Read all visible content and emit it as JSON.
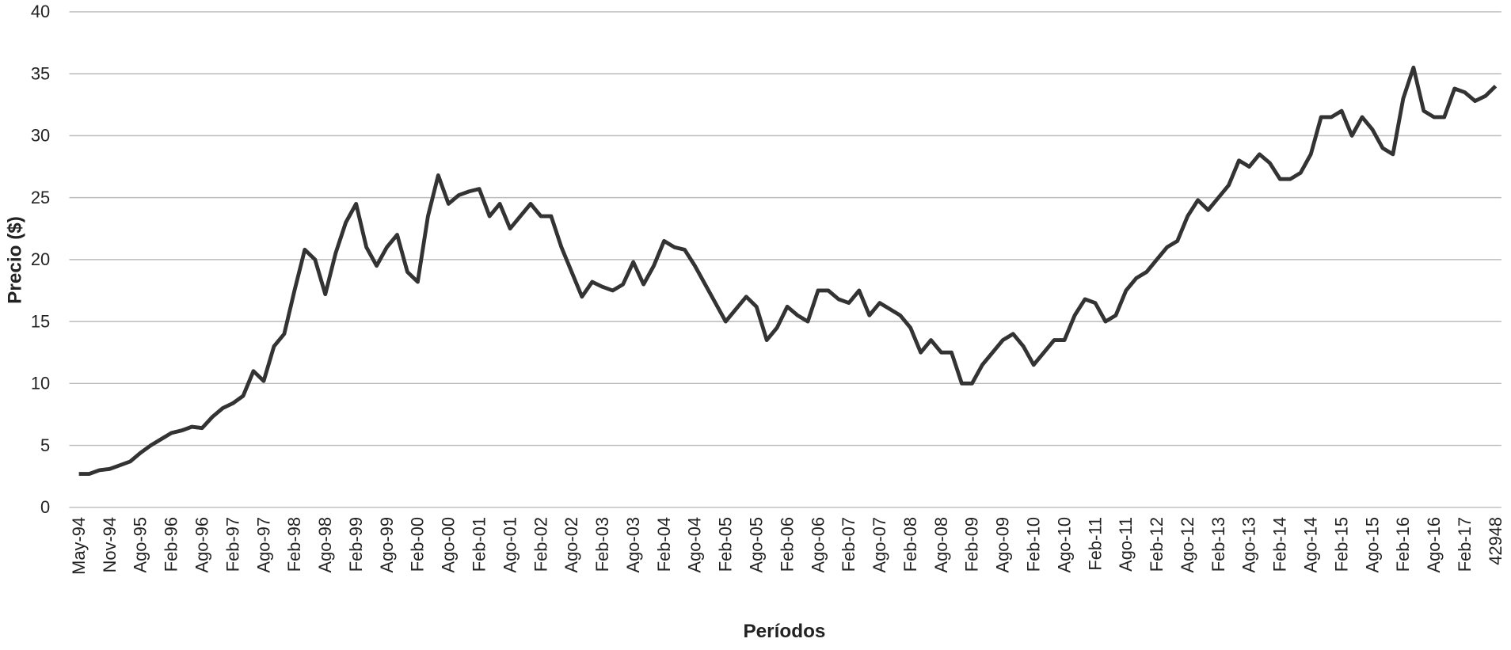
{
  "chart_data": {
    "type": "line",
    "y_label": "Precio ($)",
    "x_label": "Períodos",
    "categories": [
      "May-94",
      null,
      null,
      "Nov-94",
      null,
      null,
      "Ago-95",
      null,
      null,
      "Feb-96",
      null,
      null,
      "Ago-96",
      null,
      null,
      "Feb-97",
      null,
      null,
      "Ago-97",
      null,
      null,
      "Feb-98",
      null,
      null,
      "Ago-98",
      null,
      null,
      "Feb-99",
      null,
      null,
      "Ago-99",
      null,
      null,
      "Feb-00",
      null,
      null,
      "Ago-00",
      null,
      null,
      "Feb-01",
      null,
      null,
      "Ago-01",
      null,
      null,
      "Feb-02",
      null,
      null,
      "Ago-02",
      null,
      null,
      "Feb-03",
      null,
      null,
      "Ago-03",
      null,
      null,
      "Feb-04",
      null,
      null,
      "Ago-04",
      null,
      null,
      "Feb-05",
      null,
      null,
      "Ago-05",
      null,
      null,
      "Feb-06",
      null,
      null,
      "Ago-06",
      null,
      null,
      "Feb-07",
      null,
      null,
      "Ago-07",
      null,
      null,
      "Feb-08",
      null,
      null,
      "Ago-08",
      null,
      null,
      "Feb-09",
      null,
      null,
      "Ago-09",
      null,
      null,
      "Feb-10",
      null,
      null,
      "Ago-10",
      null,
      null,
      "Feb-11",
      null,
      null,
      "Ago-11",
      null,
      null,
      "Feb-12",
      null,
      null,
      "Ago-12",
      null,
      null,
      "Feb-13",
      null,
      null,
      "Ago-13",
      null,
      null,
      "Feb-14",
      null,
      null,
      "Ago-14",
      null,
      null,
      "Feb-15",
      null,
      null,
      "Ago-15",
      null,
      null,
      "Feb-16",
      null,
      null,
      "Ago-16",
      null,
      null,
      "Feb-17",
      null,
      null,
      "42948"
    ],
    "series": [
      {
        "color": "#333333",
        "values": [
          2.7,
          2.7,
          3.0,
          3.1,
          3.4,
          3.7,
          4.4,
          5.0,
          5.5,
          6.0,
          6.2,
          6.5,
          6.4,
          7.3,
          8.0,
          8.4,
          9.0,
          11.0,
          10.2,
          13.0,
          14.0,
          17.5,
          20.8,
          20.0,
          17.2,
          20.5,
          23.0,
          24.5,
          21.0,
          19.5,
          21.0,
          22.0,
          19.0,
          18.2,
          23.5,
          26.8,
          24.5,
          25.2,
          25.5,
          25.7,
          23.5,
          24.5,
          22.5,
          23.5,
          24.5,
          23.5,
          23.5,
          21.0,
          19.0,
          17.0,
          18.2,
          17.8,
          17.5,
          18.0,
          19.8,
          18.0,
          19.5,
          21.5,
          21.0,
          20.8,
          19.5,
          18.0,
          16.5,
          15.0,
          16.0,
          17.0,
          16.2,
          13.5,
          14.5,
          16.2,
          15.5,
          15.0,
          17.5,
          17.5,
          16.8,
          16.5,
          17.5,
          15.5,
          16.5,
          16.0,
          15.5,
          14.5,
          12.5,
          13.5,
          12.5,
          12.5,
          10.0,
          10.0,
          11.5,
          12.5,
          13.5,
          14.0,
          13.0,
          11.5,
          12.5,
          13.5,
          13.5,
          15.5,
          16.8,
          16.5,
          15.0,
          15.5,
          17.5,
          18.5,
          19.0,
          20.0,
          21.0,
          21.5,
          23.5,
          24.8,
          24.0,
          25.0,
          26.0,
          28.0,
          27.5,
          28.5,
          27.8,
          26.5,
          26.5,
          27.0,
          28.5,
          31.5,
          31.5,
          32.0,
          30.0,
          31.5,
          30.5,
          29.0,
          28.5,
          33.0,
          35.5,
          32.0,
          31.5,
          31.5,
          33.8,
          33.5,
          32.8,
          33.2,
          34.0
        ]
      }
    ],
    "ylim": [
      0,
      40
    ],
    "yticks": [
      0,
      5,
      10,
      15,
      20,
      25,
      30,
      35,
      40
    ],
    "grid": true
  }
}
